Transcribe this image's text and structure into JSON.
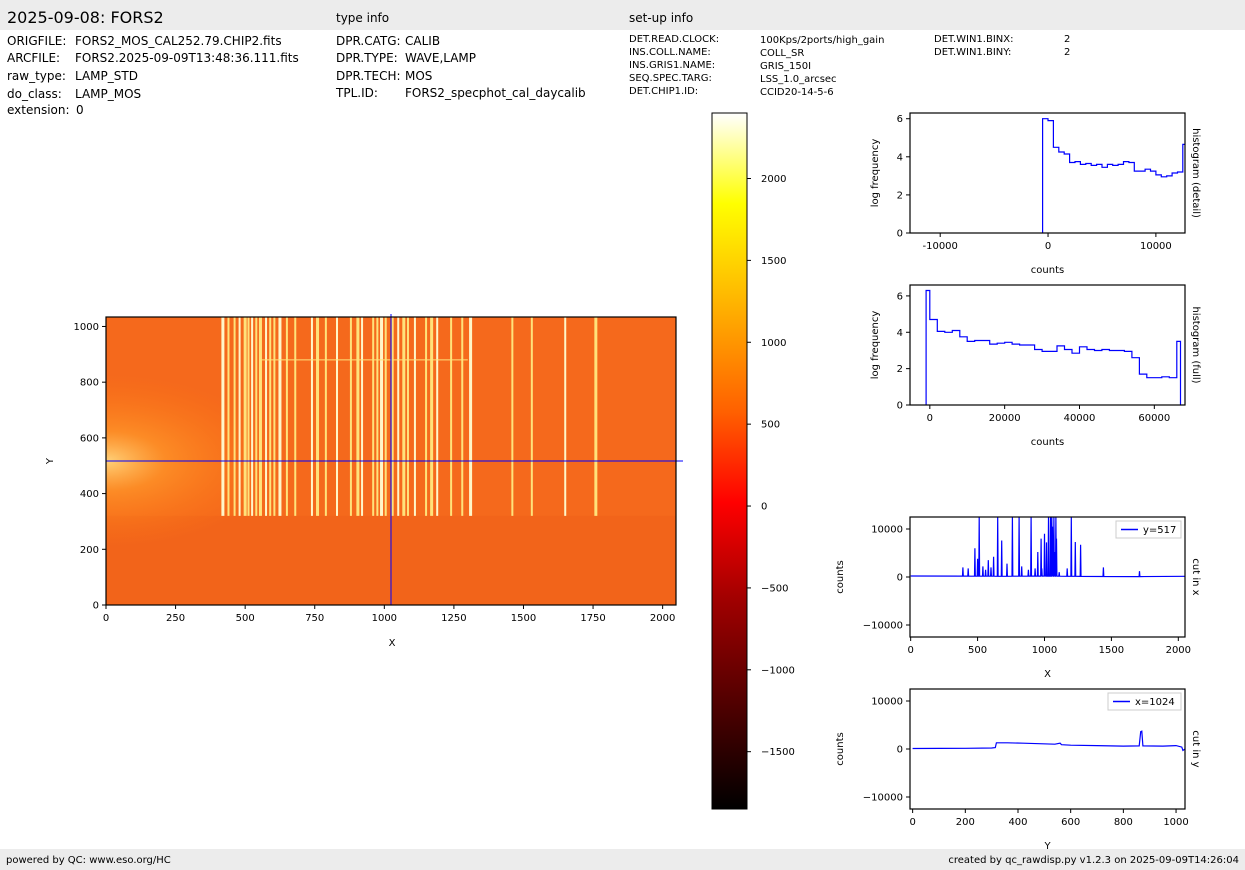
{
  "header": {
    "title": "2025-09-08: FORS2",
    "sections": [
      "type info",
      "set-up info"
    ],
    "file_info": [
      {
        "key": "ORIGFILE:",
        "value": "FORS2_MOS_CAL252.79.CHIP2.fits"
      },
      {
        "key": "ARCFILE:",
        "value": "FORS2.2025-09-09T13:48:36.111.fits"
      },
      {
        "key": "raw_type:",
        "value": "LAMP_STD"
      },
      {
        "key": "do_class:",
        "value": "LAMP_MOS"
      },
      {
        "key": "extension:",
        "value": "0"
      }
    ],
    "type_info": [
      {
        "key": "DPR.CATG:",
        "value": "CALIB"
      },
      {
        "key": "DPR.TYPE:",
        "value": "WAVE,LAMP"
      },
      {
        "key": "DPR.TECH:",
        "value": "MOS"
      },
      {
        "key": "TPL.ID:",
        "value": "FORS2_specphot_cal_daycalib"
      }
    ],
    "setup_info": [
      {
        "key": "DET.READ.CLOCK:",
        "value": "100Kps/2ports/high_gain"
      },
      {
        "key": "INS.COLL.NAME:",
        "value": "COLL_SR"
      },
      {
        "key": "INS.GRIS1.NAME:",
        "value": "GRIS_150I"
      },
      {
        "key": "SEQ.SPEC.TARG:",
        "value": "LSS_1.0_arcsec"
      },
      {
        "key": "DET.CHIP1.ID:",
        "value": "CCID20-14-5-6"
      }
    ],
    "setup_info2": [
      {
        "key": "DET.WIN1.BINX:",
        "value": "2"
      },
      {
        "key": "DET.WIN1.BINY:",
        "value": "2"
      }
    ]
  },
  "footer": {
    "left": "powered by QC: www.eso.org/HC",
    "right": "created by qc_rawdisp.py v1.2.3 on 2025-09-09T14:26:04"
  },
  "colors": {
    "cut_line": "#0000ff",
    "band": "#ececec"
  },
  "chart_data": [
    {
      "type": "heatmap",
      "xlabel": "X",
      "ylabel": "Y",
      "xlim": [
        0,
        2048
      ],
      "ylim": [
        0,
        1034
      ],
      "xticks": [
        0,
        250,
        500,
        750,
        1000,
        1250,
        1500,
        1750,
        2000
      ],
      "yticks": [
        0,
        200,
        400,
        600,
        800,
        1000
      ],
      "colormap": "hot",
      "cut_x": 1024,
      "cut_y": 517,
      "emission_lines_x": [
        420,
        440,
        462,
        480,
        500,
        512,
        525,
        540,
        555,
        575,
        590,
        605,
        625,
        650,
        680,
        740,
        760,
        790,
        830,
        880,
        905,
        920,
        960,
        975,
        990,
        1005,
        1030,
        1050,
        1070,
        1085,
        1110,
        1150,
        1170,
        1190,
        1240,
        1280,
        1310,
        1460,
        1530,
        1650,
        1760
      ]
    },
    {
      "type": "colorbar",
      "range": [
        -1850,
        2400
      ],
      "ticks": [
        -1500,
        -1000,
        -500,
        0,
        500,
        1000,
        1500,
        2000
      ],
      "tick_labels": [
        "−1500",
        "−1000",
        "−500",
        "0",
        "500",
        "1000",
        "1500",
        "2000"
      ]
    },
    {
      "type": "histogram",
      "side_label": "histogram (detail)",
      "xlabel": "counts",
      "ylabel": "log frequency",
      "xlim": [
        -12800,
        12700
      ],
      "ylim": [
        0,
        6.3
      ],
      "xticks": [
        -10000,
        0,
        10000
      ],
      "xtick_labels": [
        "-10000",
        "0",
        "10000"
      ],
      "yticks": [
        0,
        2,
        4,
        6
      ],
      "steps": [
        [
          -500,
          0
        ],
        [
          -500,
          6.0
        ],
        [
          0,
          5.9
        ],
        [
          500,
          4.5
        ],
        [
          1000,
          4.25
        ],
        [
          1500,
          4.15
        ],
        [
          2000,
          3.7
        ],
        [
          2500,
          3.75
        ],
        [
          3000,
          3.6
        ],
        [
          3500,
          3.65
        ],
        [
          4000,
          3.55
        ],
        [
          4500,
          3.6
        ],
        [
          5000,
          3.45
        ],
        [
          5500,
          3.6
        ],
        [
          6000,
          3.55
        ],
        [
          6500,
          3.6
        ],
        [
          7000,
          3.75
        ],
        [
          7500,
          3.7
        ],
        [
          8000,
          3.25
        ],
        [
          8500,
          3.25
        ],
        [
          9000,
          3.35
        ],
        [
          9500,
          3.25
        ],
        [
          10000,
          3.05
        ],
        [
          10500,
          2.95
        ],
        [
          11000,
          3.0
        ],
        [
          11500,
          3.15
        ],
        [
          12000,
          3.2
        ],
        [
          12500,
          4.65
        ],
        [
          12700,
          4.65
        ]
      ]
    },
    {
      "type": "histogram",
      "side_label": "histogram (full)",
      "xlabel": "counts",
      "ylabel": "log frequency",
      "xlim": [
        -5300,
        68200
      ],
      "ylim": [
        0,
        6.6
      ],
      "xticks": [
        0,
        20000,
        40000,
        60000
      ],
      "xtick_labels": [
        "0",
        "20000",
        "40000",
        "60000"
      ],
      "yticks": [
        0,
        2,
        4,
        6
      ],
      "steps": [
        [
          -1000,
          0
        ],
        [
          -1000,
          6.3
        ],
        [
          0,
          4.7
        ],
        [
          2000,
          4.05
        ],
        [
          4000,
          4.0
        ],
        [
          6000,
          4.1
        ],
        [
          8000,
          3.75
        ],
        [
          10000,
          3.5
        ],
        [
          12000,
          3.55
        ],
        [
          14000,
          3.55
        ],
        [
          16000,
          3.35
        ],
        [
          18000,
          3.4
        ],
        [
          20000,
          3.45
        ],
        [
          22000,
          3.35
        ],
        [
          24000,
          3.3
        ],
        [
          26000,
          3.3
        ],
        [
          28000,
          3.05
        ],
        [
          30000,
          2.95
        ],
        [
          32000,
          2.95
        ],
        [
          34000,
          3.25
        ],
        [
          36000,
          3.05
        ],
        [
          38000,
          2.85
        ],
        [
          40000,
          3.2
        ],
        [
          42000,
          3.05
        ],
        [
          44000,
          3.0
        ],
        [
          46000,
          3.05
        ],
        [
          48000,
          3.0
        ],
        [
          50000,
          3.0
        ],
        [
          52000,
          2.95
        ],
        [
          54000,
          2.6
        ],
        [
          56000,
          1.7
        ],
        [
          58000,
          1.5
        ],
        [
          60000,
          1.5
        ],
        [
          62000,
          1.55
        ],
        [
          64000,
          1.5
        ],
        [
          66000,
          3.5
        ],
        [
          67000,
          3.5
        ],
        [
          67000,
          0
        ]
      ]
    },
    {
      "type": "line",
      "side_label": "cut in x",
      "legend": "y=517",
      "xlabel": "X",
      "ylabel": "counts",
      "xlim": [
        -5,
        2050
      ],
      "ylim": [
        -12500,
        12500
      ],
      "xticks": [
        0,
        500,
        1000,
        1500,
        2000
      ],
      "yticks": [
        -10000,
        0,
        10000
      ],
      "ytick_labels": [
        "−10000",
        "0",
        "10000"
      ],
      "baseline": [
        [
          0,
          200
        ],
        [
          100,
          300
        ],
        [
          200,
          200
        ],
        [
          300,
          250
        ],
        [
          400,
          180
        ],
        [
          700,
          150
        ],
        [
          1000,
          200
        ],
        [
          1300,
          120
        ],
        [
          1600,
          100
        ],
        [
          1900,
          80
        ],
        [
          2048,
          150
        ]
      ],
      "peaks": [
        [
          390,
          2000
        ],
        [
          430,
          1800
        ],
        [
          480,
          6000
        ],
        [
          500,
          3800
        ],
        [
          512,
          12500
        ],
        [
          540,
          2200
        ],
        [
          560,
          1500
        ],
        [
          580,
          3500
        ],
        [
          600,
          2000
        ],
        [
          620,
          4200
        ],
        [
          650,
          12500
        ],
        [
          680,
          7600
        ],
        [
          720,
          2800
        ],
        [
          760,
          12500
        ],
        [
          810,
          12500
        ],
        [
          830,
          2200
        ],
        [
          880,
          1500
        ],
        [
          900,
          12500
        ],
        [
          930,
          1800
        ],
        [
          950,
          5200
        ],
        [
          975,
          8000
        ],
        [
          980,
          1800
        ],
        [
          1000,
          9000
        ],
        [
          1015,
          7200
        ],
        [
          1030,
          12500
        ],
        [
          1045,
          12500
        ],
        [
          1055,
          12500
        ],
        [
          1060,
          10500
        ],
        [
          1070,
          12500
        ],
        [
          1075,
          5200
        ],
        [
          1085,
          12500
        ],
        [
          1090,
          8000
        ],
        [
          1110,
          1000
        ],
        [
          1170,
          1800
        ],
        [
          1200,
          12500
        ],
        [
          1230,
          7300
        ],
        [
          1270,
          6700
        ],
        [
          1440,
          2000
        ],
        [
          1710,
          1200
        ]
      ]
    },
    {
      "type": "line",
      "side_label": "cut in y",
      "legend": "x=1024",
      "xlabel": "Y",
      "ylabel": "counts",
      "xlim": [
        -10,
        1034
      ],
      "ylim": [
        -12500,
        12500
      ],
      "xticks": [
        0,
        200,
        400,
        600,
        800,
        1000
      ],
      "yticks": [
        -10000,
        0,
        10000
      ],
      "ytick_labels": [
        "−10000",
        "0",
        "10000"
      ],
      "points": [
        [
          0,
          100
        ],
        [
          100,
          120
        ],
        [
          200,
          150
        ],
        [
          300,
          200
        ],
        [
          314,
          300
        ],
        [
          318,
          1300
        ],
        [
          360,
          1300
        ],
        [
          420,
          1200
        ],
        [
          480,
          1100
        ],
        [
          540,
          1000
        ],
        [
          560,
          1200
        ],
        [
          565,
          900
        ],
        [
          600,
          800
        ],
        [
          700,
          700
        ],
        [
          800,
          600
        ],
        [
          860,
          650
        ],
        [
          866,
          3600
        ],
        [
          870,
          3700
        ],
        [
          874,
          650
        ],
        [
          950,
          600
        ],
        [
          1000,
          700
        ],
        [
          1022,
          400
        ],
        [
          1026,
          -300
        ],
        [
          1034,
          0
        ]
      ]
    }
  ]
}
